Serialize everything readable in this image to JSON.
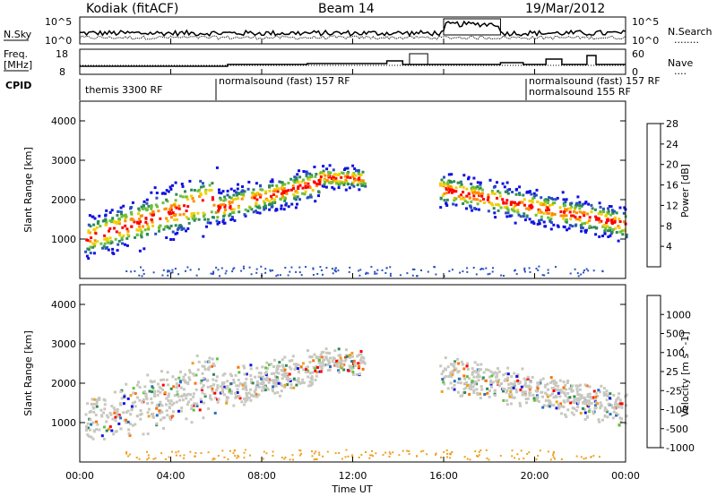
{
  "header": {
    "station": "Kodiak (fitACF)",
    "beam": "Beam 14",
    "date": "19/Mar/2012"
  },
  "noise_panel": {
    "left_label": "N.Sky",
    "right_label": "N.Search",
    "right_label_dots": "........",
    "left_ticks": [
      "10^5",
      "10^0"
    ],
    "right_ticks": [
      "10^5",
      "10^0"
    ]
  },
  "freq_panel": {
    "left_label_line1": "Freq.",
    "left_label_line2": "[MHz]",
    "right_label": "Nave",
    "right_label_dots": "....",
    "left_ticks": [
      "18",
      "8"
    ],
    "right_ticks": [
      "60",
      "0"
    ]
  },
  "cpid": {
    "label": "CPID",
    "segments": [
      {
        "text": "themis 3300 RF",
        "start_h": 0.0
      },
      {
        "text": "normalsound (fast) 157 RF",
        "start_h": 6.0
      },
      {
        "text": "normalsound (fast) 157 RF",
        "start_h": 19.75
      },
      {
        "text": "normalsound 155 RF",
        "start_h": 19.75
      }
    ]
  },
  "chart_data": [
    {
      "type": "heatmap",
      "name": "power",
      "ylabel": "Slant Range [km]",
      "xlabel": "Time UT",
      "x_ticks": [
        "00:00",
        "04:00",
        "08:00",
        "12:00",
        "16:00",
        "20:00",
        "00:00"
      ],
      "x_range_hours": [
        0,
        24
      ],
      "ylim": [
        0,
        4500
      ],
      "y_ticks": [
        1000,
        2000,
        3000,
        4000
      ],
      "colorbar": {
        "label": "Power [dB]",
        "ticks": [
          "4",
          "8",
          "12",
          "16",
          "20",
          "24",
          "28"
        ],
        "range": [
          0,
          30
        ],
        "colors": [
          "#1010e0",
          "#2a52be",
          "#2e8b57",
          "#6dbf3a",
          "#f0d000",
          "#ff8c00",
          "#ff0000"
        ]
      }
    },
    {
      "type": "heatmap",
      "name": "velocity",
      "ylabel": "Slant Range [km]",
      "xlabel": "Time UT",
      "x_ticks": [
        "00:00",
        "04:00",
        "08:00",
        "12:00",
        "16:00",
        "20:00",
        "00:00"
      ],
      "x_range_hours": [
        0,
        24
      ],
      "ylim": [
        0,
        4500
      ],
      "y_ticks": [
        1000,
        2000,
        3000,
        4000
      ],
      "colorbar": {
        "label": "Velocity [m s^-1]",
        "ticks": [
          "1000",
          "500",
          "100",
          "25",
          "-25",
          "-100",
          "-500",
          "-1000"
        ],
        "colors": [
          "#1010e0",
          "#2a6fb8",
          "#2e8b57",
          "#5fc43c",
          "#c8c8c0",
          "#f0a020",
          "#ff7000",
          "#ff0000"
        ]
      }
    }
  ]
}
